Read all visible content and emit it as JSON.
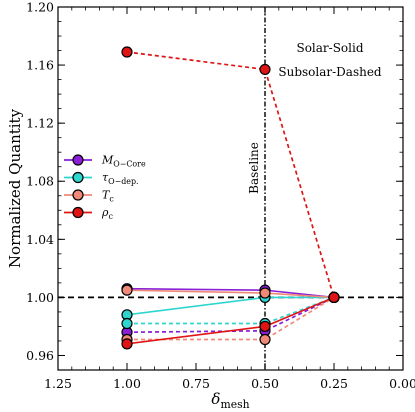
{
  "chart_data": {
    "type": "line",
    "xlabel": "δ_mesh",
    "ylabel": "Normalized Quantity",
    "xlim": [
      1.25,
      0.0
    ],
    "ylim": [
      0.95,
      1.2
    ],
    "x_inverted": true,
    "xticks": [
      "1.25",
      "1.00",
      "0.75",
      "0.50",
      "0.25",
      "0.00"
    ],
    "xtick_values": [
      1.25,
      1.0,
      0.75,
      0.5,
      0.25,
      0.0
    ],
    "yticks": [
      "0.96",
      "1.00",
      "1.04",
      "1.08",
      "1.12",
      "1.16",
      "1.20"
    ],
    "ytick_values": [
      0.96,
      1.0,
      1.04,
      1.08,
      1.12,
      1.16,
      1.2
    ],
    "reference_hline": 1.0,
    "baseline_vline": 0.5,
    "baseline_label": "Baseline",
    "annotation_line1": "Solar-Solid",
    "annotation_line2": "Subsolar-Dashed",
    "legend_position": "center-left",
    "x": [
      1.0,
      0.5,
      0.25
    ],
    "series": [
      {
        "name": "M",
        "sub": "O−Core",
        "color": "#8a1fd6",
        "style": "solid",
        "values": [
          1.006,
          1.005,
          1.0
        ]
      },
      {
        "name": "M",
        "sub": "O−Core",
        "color": "#8a1fd6",
        "style": "dashed",
        "values": [
          0.976,
          0.977,
          1.0
        ]
      },
      {
        "name": "τ",
        "sub": "O−dep.",
        "color": "#2ed6cf",
        "style": "solid",
        "values": [
          0.988,
          1.0,
          1.0
        ]
      },
      {
        "name": "τ",
        "sub": "O−dep.",
        "color": "#2ed6cf",
        "style": "dashed",
        "values": [
          0.982,
          0.982,
          1.0
        ]
      },
      {
        "name": "T",
        "sub": "c",
        "color": "#f08a78",
        "style": "solid",
        "values": [
          1.005,
          1.003,
          1.0
        ]
      },
      {
        "name": "T",
        "sub": "c",
        "color": "#f08a78",
        "style": "dashed",
        "values": [
          0.971,
          0.971,
          1.0
        ]
      },
      {
        "name": "ρ",
        "sub": "c",
        "color": "#e01414",
        "style": "solid",
        "values": [
          0.968,
          0.98,
          1.0
        ]
      },
      {
        "name": "ρ",
        "sub": "c",
        "color": "#e01414",
        "style": "dashed",
        "values": [
          1.169,
          1.157,
          1.0
        ]
      }
    ],
    "legend": [
      {
        "name": "M",
        "sub": "O−Core",
        "color": "#8a1fd6"
      },
      {
        "name": "τ",
        "sub": "O−dep.",
        "color": "#2ed6cf"
      },
      {
        "name": "T",
        "sub": "c",
        "color": "#f08a78"
      },
      {
        "name": "ρ",
        "sub": "c",
        "color": "#e01414"
      }
    ]
  }
}
